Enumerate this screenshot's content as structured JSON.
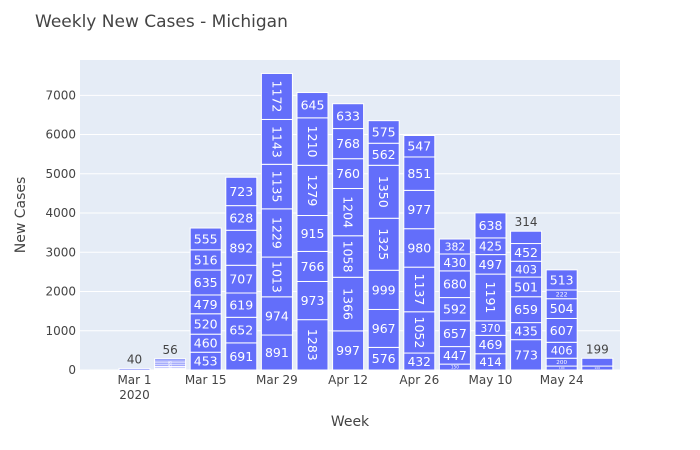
{
  "chart_data": {
    "type": "bar",
    "title": "Weekly New Cases - Michigan",
    "xlabel": "Week",
    "ylabel": "New Cases",
    "ylim": [
      0,
      7900
    ],
    "yticks": [
      0,
      1000,
      2000,
      3000,
      4000,
      5000,
      6000,
      7000
    ],
    "x_tick_labels": [
      "Mar 1",
      "Mar 15",
      "Mar 29",
      "Apr 12",
      "Apr 26",
      "May 10",
      "May 24"
    ],
    "x_tick_sublabel": "2020",
    "bar_color": "#636efa",
    "grid": true,
    "stacking": "each bar is a stack of daily counts; segments listed bottom to top",
    "bars": [
      {
        "week": "Mar 1",
        "segments": [
          40
        ]
      },
      {
        "week": "Mar 8",
        "segments": [
          25,
          28,
          35,
          45,
          50,
          45,
          56
        ]
      },
      {
        "week": "Mar 15",
        "segments": [
          453,
          460,
          520,
          479,
          635,
          516,
          555
        ]
      },
      {
        "week": "Mar 22",
        "segments": [
          691,
          652,
          619,
          707,
          892,
          628,
          723
        ]
      },
      {
        "week": "Mar 29",
        "segments": [
          891,
          974,
          1013,
          1229,
          1135,
          1143,
          1172
        ]
      },
      {
        "week": "Apr 5",
        "segments": [
          1283,
          973,
          766,
          915,
          1279,
          1210,
          645
        ]
      },
      {
        "week": "Apr 12",
        "segments": [
          997,
          1366,
          1058,
          1204,
          760,
          768,
          633
        ]
      },
      {
        "week": "Apr 19",
        "segments": [
          576,
          967,
          999,
          1325,
          1350,
          562,
          575
        ]
      },
      {
        "week": "Apr 26",
        "segments": [
          432,
          1052,
          1137,
          980,
          977,
          851,
          547
        ]
      },
      {
        "week": "May 3",
        "segments": [
          150,
          447,
          657,
          592,
          680,
          430,
          382
        ]
      },
      {
        "week": "May 10",
        "segments": [
          414,
          469,
          370,
          1191,
          497,
          425,
          638
        ]
      },
      {
        "week": "May 17",
        "segments": [
          773,
          435,
          659,
          501,
          403,
          452,
          314
        ]
      },
      {
        "week": "May 24",
        "segments": [
          100,
          200,
          406,
          607,
          504,
          222,
          513
        ]
      },
      {
        "week": "May 31",
        "segments": [
          100,
          199
        ]
      }
    ]
  }
}
